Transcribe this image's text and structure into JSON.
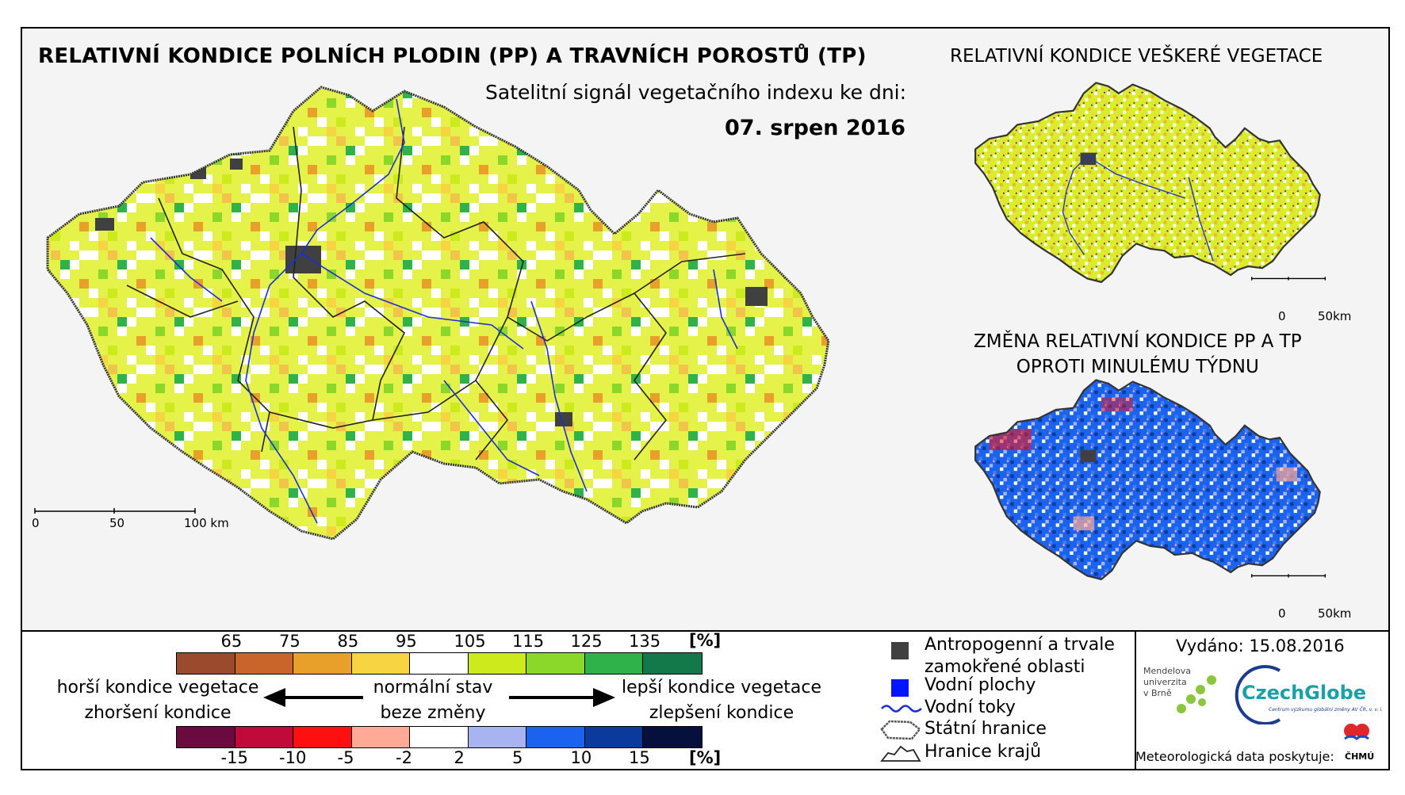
{
  "titles": {
    "main": "RELATIVNÍ KONDICE POLNÍCH PLODIN (PP) A TRAVNÍCH POROSTŮ (TP)",
    "subtitle": "Satelitní signál vegetačního indexu ke dni:",
    "date": "07. srpen 2016",
    "right_top": "RELATIVNÍ KONDICE VEŠKERÉ VEGETACE",
    "right_bottom_line1": "ZMĚNA RELATIVNÍ KONDICE PP A TP",
    "right_bottom_line2": "OPROTI MINULÉMU TÝDNU"
  },
  "scalebar_main": {
    "labels": [
      "0",
      "50",
      "100 km"
    ]
  },
  "scalebar_small": {
    "labels": [
      "0",
      "50km"
    ]
  },
  "legend_condition": {
    "unit": "[%]",
    "ticks": [
      "65",
      "75",
      "85",
      "95",
      "105",
      "115",
      "125",
      "135"
    ],
    "colors": [
      "#9c4a2e",
      "#c9652b",
      "#e8a02a",
      "#f7d441",
      "#ffffff",
      "#cdea1c",
      "#8cd82a",
      "#2fb24a",
      "#13784a"
    ]
  },
  "legend_change": {
    "unit": "[%]",
    "ticks": [
      "-15",
      "-10",
      "-5",
      "-2",
      "2",
      "5",
      "10",
      "15"
    ],
    "colors": [
      "#6b0a3e",
      "#c00a3a",
      "#ff1010",
      "#ffaa96",
      "#ffffff",
      "#a8b4f2",
      "#1b62ee",
      "#0a3b9c",
      "#06103c"
    ]
  },
  "legend_labels": {
    "worse_1": "horší kondice vegetace",
    "worse_2": "zhoršení kondice",
    "normal_1": "normální stav",
    "normal_2": "beze změny",
    "better_1": "lepší kondice vegetace",
    "better_2": "zlepšení kondice"
  },
  "map_legend": {
    "urban_1": "Antropogenní a trvale",
    "urban_2": "zamokřené oblasti",
    "water": "Vodní plochy",
    "rivers": "Vodní toky",
    "state_border": "Státní hranice",
    "regions": "Hranice krajů",
    "urban_color": "#404040",
    "water_color": "#0014ff",
    "river_color": "#1a2fd8"
  },
  "issued": "Vydáno: 15.08.2016",
  "logos": {
    "mendel_1": "Mendelova",
    "mendel_2": "univerzita",
    "mendel_3": "v Brně",
    "czechglobe": "CzechGlobe",
    "czechglobe_sub": "Centrum výzkumu globální změny AV ČR, v. v. i.",
    "chmu": "ČHMÚ"
  },
  "meteo_text": "Meteorologická data poskytuje:"
}
